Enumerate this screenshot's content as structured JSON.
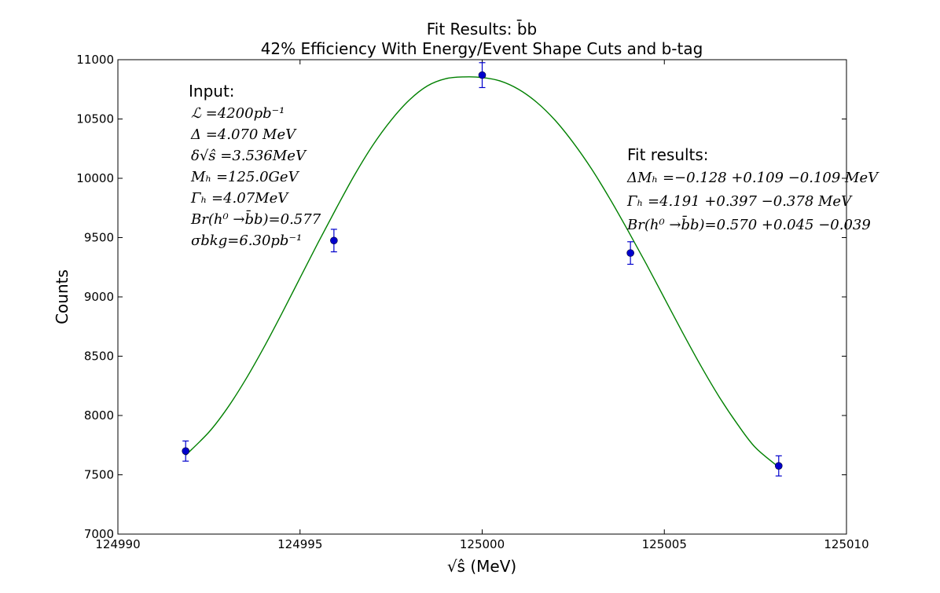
{
  "chart_data": {
    "type": "scatter",
    "title": [
      "Fit Results: b̄b",
      "42% Efficiency With Energy/Event Shape Cuts and b-tag"
    ],
    "xlabel": "√ŝ (MeV)",
    "ylabel": "Counts",
    "xlim": [
      124990,
      125010
    ],
    "ylim": [
      7000,
      11000
    ],
    "xticks": [
      124990,
      124995,
      125000,
      125005,
      125010
    ],
    "yticks": [
      7000,
      7500,
      8000,
      8500,
      9000,
      9500,
      10000,
      10500,
      11000
    ],
    "grid": false,
    "colors": {
      "points": "#0000cc",
      "fit": "#008000"
    },
    "points": {
      "x": [
        124991.86,
        124995.93,
        125000.0,
        125004.07,
        125008.14
      ],
      "y": [
        7700,
        9475,
        10870,
        9370,
        7575
      ],
      "yerr": [
        85,
        95,
        105,
        95,
        85
      ]
    },
    "fit_curve": {
      "description_shown": false,
      "x": [
        124991.86,
        124992.5,
        124993.0,
        124993.5,
        124994.0,
        124994.5,
        124995.0,
        124995.5,
        124996.0,
        124996.5,
        124997.0,
        124997.5,
        124998.0,
        124998.5,
        124999.0,
        124999.5,
        125000.0,
        125000.5,
        125001.0,
        125001.5,
        125002.0,
        125002.5,
        125003.0,
        125003.5,
        125004.0,
        125004.5,
        125005.0,
        125005.5,
        125006.0,
        125006.5,
        125007.0,
        125007.5,
        125008.14
      ],
      "y": [
        7665,
        7860,
        8060,
        8300,
        8570,
        8860,
        9160,
        9460,
        9750,
        10030,
        10280,
        10490,
        10660,
        10780,
        10840,
        10855,
        10850,
        10820,
        10750,
        10640,
        10490,
        10300,
        10080,
        9830,
        9560,
        9280,
        8990,
        8700,
        8420,
        8160,
        7930,
        7730,
        7565
      ]
    },
    "annotations": {
      "input_heading": "Input:",
      "input_lines": [
        "ℒ =4200pb⁻¹",
        "Δ =4.070 MeV",
        "δ√ŝ =3.536MeV",
        "Mₕ =125.0GeV",
        "Γₕ =4.07MeV",
        "Br(h⁰ →b̄b)=0.577",
        "σbkg=6.30pb⁻¹"
      ],
      "fit_heading": "Fit results:",
      "fit_lines": [
        "ΔMₕ =−0.128 +0.109 −0.109  MeV",
        "Γₕ =4.191 +0.397 −0.378  MeV",
        "Br(h⁰ →b̄b)=0.570 +0.045 −0.039"
      ]
    }
  }
}
